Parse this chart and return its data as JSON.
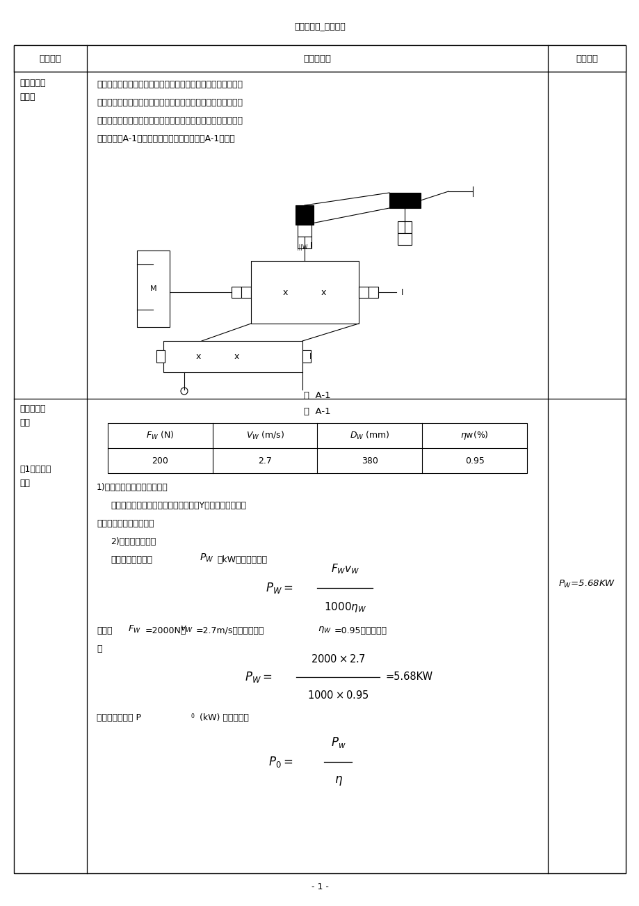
{
  "page_title": "带式输送机_课程设计",
  "bg_color": "#ffffff",
  "col1_label": "设计项目",
  "col2_label": "计算及说明",
  "col3_label": "主要结果",
  "section1_title_line1": "一、确定传",
  "section1_title_line2": "动方案",
  "section2_title_line1": "二、选择电",
  "section2_title_line2": "动机",
  "section2b_title_line1": "（1）选择电",
  "section2b_title_line2": "动机",
  "section1_body": [
    "机械传动装置一般由原动机、传动装置、工作机和机架四部分组",
    "成。单机圆柱齿轮减速器由带轮和齿轮传动组成，根据各种传动",
    "的特点，带传动安排在高速级，齿轮传动放在低速级。传动装置",
    "的布置如图A-1所示，带式输送机各参数如表A-1所示。"
  ],
  "fig_label": "图  A-1",
  "table_label": "表  A-1",
  "table_headers_math": [
    "$F_W$ (N)",
    "$V_W$ (m/s)",
    "$D_W$ (mm)",
    "$\\eta$w(%)"
  ],
  "table_values": [
    "200",
    "2.7",
    "380",
    "0.95"
  ],
  "s2_lines": [
    "1)选择电动机类型和结构形式",
    "    根据工作要求和条件，选用一般用途的Y系列三相异步电动",
    "机，结构为卧室封闭结构",
    "    2)确定电动机功率"
  ],
  "page_num": "- 1 -"
}
